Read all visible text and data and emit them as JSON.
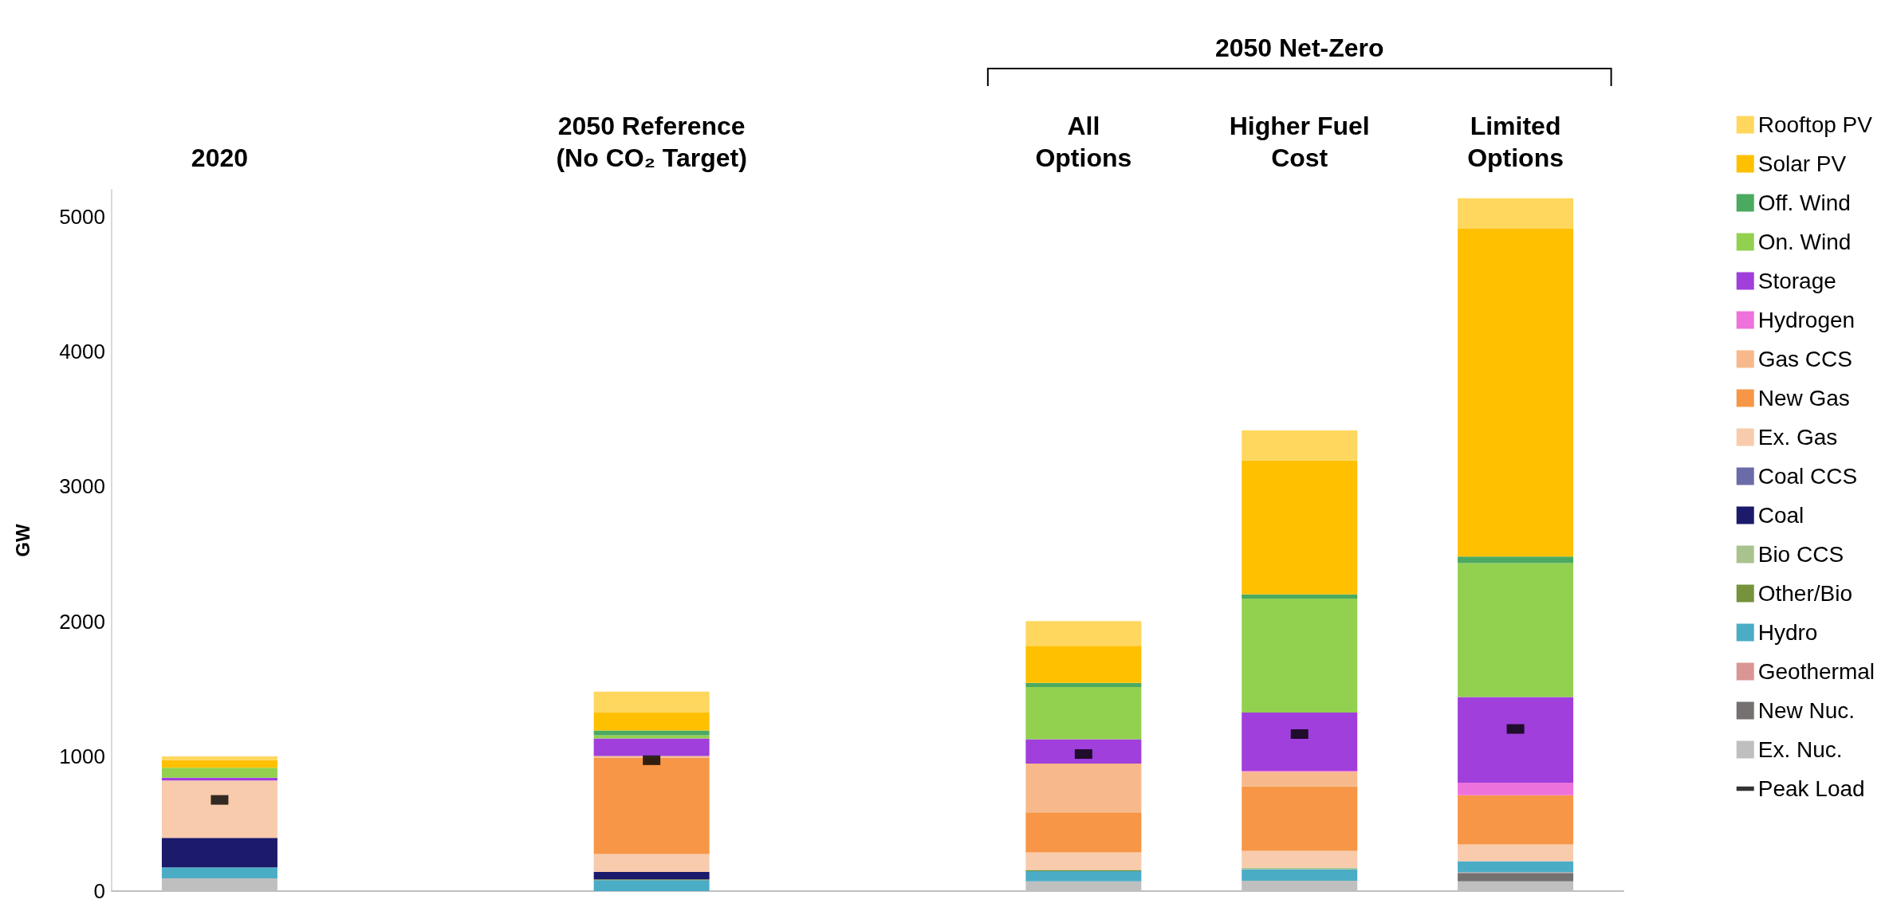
{
  "chart_data": {
    "type": "bar",
    "stacked": true,
    "ylabel": "GW",
    "categories": [
      "2020",
      null,
      "2050 Reference\n(No CO₂ Target)",
      null,
      "All\nOptions",
      "Higher Fuel\nCost",
      "Limited\nOptions"
    ],
    "annotations": [
      "2050 Net-Zero"
    ],
    "ylim": [
      0,
      5200
    ],
    "yticks": [
      0,
      1000,
      2000,
      3000,
      4000,
      5000
    ],
    "grid": false,
    "legend": "right",
    "series": [
      {
        "name": "Ex. Nuc.",
        "color": "#bfbfbf",
        "values": [
          95,
          null,
          0,
          null,
          73,
          77,
          73
        ]
      },
      {
        "name": "New Nuc.",
        "color": "#767171",
        "values": [
          0,
          null,
          0,
          null,
          0,
          0,
          61
        ]
      },
      {
        "name": "Geothermal",
        "color": "#da9694",
        "values": [
          0,
          null,
          0,
          null,
          0,
          0,
          5
        ]
      },
      {
        "name": "Hydro",
        "color": "#4bacc6",
        "values": [
          81,
          null,
          81,
          null,
          75,
          84,
          82
        ]
      },
      {
        "name": "Other/Bio",
        "color": "#76923c",
        "values": [
          0,
          null,
          6,
          null,
          9,
          0,
          0
        ]
      },
      {
        "name": "Bio CCS",
        "color": "#a9c38f",
        "values": [
          0,
          null,
          0,
          null,
          0,
          14,
          0
        ]
      },
      {
        "name": "Coal",
        "color": "#1b1a6b",
        "values": [
          219,
          null,
          55,
          null,
          0,
          0,
          0
        ]
      },
      {
        "name": "Coal CCS",
        "color": "#6b6ba8",
        "values": [
          0,
          null,
          0,
          null,
          0,
          0,
          0
        ]
      },
      {
        "name": "Ex. Gas",
        "color": "#f8cbad",
        "values": [
          425,
          null,
          133,
          null,
          129,
          124,
          124
        ]
      },
      {
        "name": "New Gas",
        "color": "#f79646",
        "values": [
          0,
          null,
          713,
          null,
          298,
          476,
          366
        ]
      },
      {
        "name": "Gas CCS",
        "color": "#f7b98b",
        "values": [
          0,
          null,
          14,
          null,
          361,
          110,
          0
        ]
      },
      {
        "name": "Hydrogen",
        "color": "#ee72dc",
        "values": [
          0,
          null,
          0,
          null,
          0,
          7,
          92
        ]
      },
      {
        "name": "Storage",
        "color": "#a03fdb",
        "values": [
          20,
          null,
          130,
          null,
          181,
          432,
          636
        ]
      },
      {
        "name": "On. Wind",
        "color": "#92d050",
        "values": [
          75,
          null,
          23,
          null,
          387,
          845,
          992
        ]
      },
      {
        "name": "Off. Wind",
        "color": "#4caa60",
        "values": [
          0,
          null,
          35,
          null,
          31,
          31,
          50
        ]
      },
      {
        "name": "Solar PV",
        "color": "#ffc000",
        "values": [
          55,
          null,
          136,
          null,
          275,
          993,
          2430
        ]
      },
      {
        "name": "Rooftop PV",
        "color": "#ffd75e",
        "values": [
          29,
          null,
          153,
          null,
          183,
          222,
          226
        ]
      },
      {
        "name": "Peak Load",
        "type": "scatter",
        "color": "#000000",
        "values": [
          676,
          null,
          970,
          null,
          1016,
          1164,
          1202
        ]
      }
    ]
  }
}
